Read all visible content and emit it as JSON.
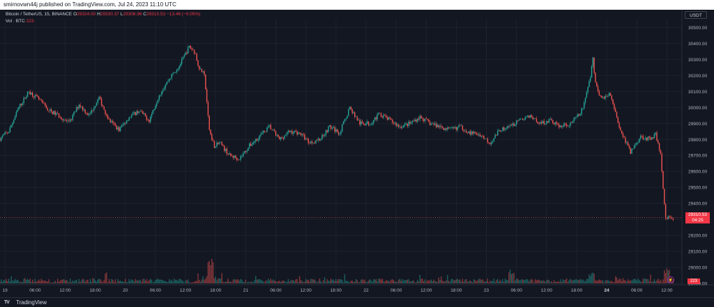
{
  "header": {
    "publisher_line": "smirnovwn44j published on TradingView.com, Jul 24, 2023 11:10 UTC"
  },
  "legend": {
    "symbol": "Bitcoin / TetherUS, 15, BINANCE",
    "open_label": "O",
    "open_value": "29324.00",
    "high_label": "H",
    "high_value": "29330.37",
    "low_label": "L",
    "low_value": "29308.96",
    "close_label": "C",
    "close_value": "29310.53",
    "change": "−13.46 (−0.05%)",
    "volume_label": "Vol · BTC",
    "volume_value": "223"
  },
  "currency_button": "USDT",
  "price_tag": {
    "price": "29310.53",
    "countdown": "04:25"
  },
  "volume_tag": "223",
  "footer": {
    "brand": "TradingView"
  },
  "colors": {
    "background": "#131722",
    "up": "#26a69a",
    "down": "#ef5350",
    "text": "#b2b5be"
  },
  "chart_data": {
    "type": "candlestick",
    "ylim": [
      28900,
      30550
    ],
    "y_ticks": [
      28900,
      29000,
      29100,
      29200,
      29300,
      29400,
      29500,
      29600,
      29700,
      29800,
      29900,
      30000,
      30100,
      30200,
      30300,
      30400,
      30500
    ],
    "y_tick_labels": [
      "28900.00",
      "29000.00",
      "29100.00",
      "29200.00",
      "29300.00",
      "29400.00",
      "29500.00",
      "29600.00",
      "29700.00",
      "29800.00",
      "29900.00",
      "30000.00",
      "30100.00",
      "30200.00",
      "30300.00",
      "30400.00",
      "30500.00"
    ],
    "x_tick_labels": [
      "19",
      "06:00",
      "12:00",
      "18:00",
      "20",
      "06:00",
      "12:00",
      "18:00",
      "21",
      "06:00",
      "12:00",
      "18:00",
      "22",
      "06:00",
      "12:00",
      "18:00",
      "23",
      "06:00",
      "12:00",
      "18:00",
      "24",
      "06:00",
      "12:00"
    ],
    "x_tick_hours": [
      0,
      6,
      12,
      18,
      24,
      30,
      36,
      42,
      48,
      54,
      60,
      66,
      72,
      78,
      84,
      90,
      96,
      102,
      108,
      114,
      120,
      126,
      132
    ],
    "x_bold_labels": [
      "24"
    ],
    "x_range_hours": [
      -1,
      135
    ],
    "current_price": 29310.53,
    "price_path": [
      [
        -1,
        29800
      ],
      [
        1,
        29850
      ],
      [
        3,
        30000
      ],
      [
        5,
        30100
      ],
      [
        7,
        30050
      ],
      [
        9,
        29980
      ],
      [
        11,
        29950
      ],
      [
        13,
        29900
      ],
      [
        15,
        30020
      ],
      [
        17,
        29950
      ],
      [
        19,
        30060
      ],
      [
        21,
        29920
      ],
      [
        23,
        29860
      ],
      [
        25,
        29940
      ],
      [
        27,
        29980
      ],
      [
        29,
        29920
      ],
      [
        31,
        30080
      ],
      [
        33,
        30180
      ],
      [
        35,
        30260
      ],
      [
        37,
        30380
      ],
      [
        38,
        30350
      ],
      [
        39,
        30250
      ],
      [
        40,
        30200
      ],
      [
        41,
        29860
      ],
      [
        42,
        29760
      ],
      [
        43,
        29780
      ],
      [
        45,
        29700
      ],
      [
        47,
        29680
      ],
      [
        49,
        29760
      ],
      [
        51,
        29820
      ],
      [
        53,
        29880
      ],
      [
        55,
        29800
      ],
      [
        57,
        29850
      ],
      [
        59,
        29840
      ],
      [
        61,
        29780
      ],
      [
        63,
        29800
      ],
      [
        65,
        29880
      ],
      [
        67,
        29840
      ],
      [
        69,
        30000
      ],
      [
        71,
        29900
      ],
      [
        73,
        29900
      ],
      [
        75,
        29960
      ],
      [
        77,
        29920
      ],
      [
        79,
        29880
      ],
      [
        81,
        29900
      ],
      [
        83,
        29940
      ],
      [
        85,
        29900
      ],
      [
        87,
        29880
      ],
      [
        89,
        29860
      ],
      [
        91,
        29880
      ],
      [
        93,
        29840
      ],
      [
        95,
        29830
      ],
      [
        97,
        29780
      ],
      [
        99,
        29860
      ],
      [
        101,
        29880
      ],
      [
        103,
        29920
      ],
      [
        105,
        29950
      ],
      [
        107,
        29900
      ],
      [
        109,
        29920
      ],
      [
        111,
        29880
      ],
      [
        113,
        29900
      ],
      [
        115,
        29960
      ],
      [
        116,
        30050
      ],
      [
        117,
        30200
      ],
      [
        117.5,
        30310
      ],
      [
        118,
        30150
      ],
      [
        119,
        30060
      ],
      [
        121,
        30080
      ],
      [
        123,
        29860
      ],
      [
        125,
        29720
      ],
      [
        127,
        29820
      ],
      [
        129,
        29800
      ],
      [
        130,
        29840
      ],
      [
        131,
        29700
      ],
      [
        132,
        29300
      ],
      [
        133,
        29310
      ]
    ],
    "volume_spikes": [
      [
        41,
        0.9
      ],
      [
        101,
        0.45
      ],
      [
        117,
        0.35
      ],
      [
        132,
        0.55
      ]
    ]
  }
}
